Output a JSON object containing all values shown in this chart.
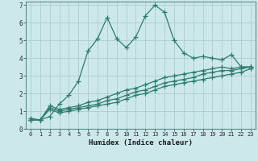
{
  "xlabel": "Humidex (Indice chaleur)",
  "background_color": "#cde8eb",
  "grid_color": "#b0d0d4",
  "line_color": "#2e7c6e",
  "xlim": [
    -0.5,
    23.5
  ],
  "ylim": [
    0,
    7.2
  ],
  "xticks": [
    0,
    1,
    2,
    3,
    4,
    5,
    6,
    7,
    8,
    9,
    10,
    11,
    12,
    13,
    14,
    15,
    16,
    17,
    18,
    19,
    20,
    21,
    22,
    23
  ],
  "yticks": [
    0,
    1,
    2,
    3,
    4,
    5,
    6,
    7
  ],
  "series1_x": [
    0,
    1,
    2,
    3,
    4,
    5,
    6,
    7,
    8,
    9,
    10,
    11,
    12,
    13,
    14,
    15,
    16,
    17,
    18,
    19,
    20,
    21,
    22,
    23
  ],
  "series1_y": [
    0.6,
    0.5,
    0.7,
    1.4,
    1.9,
    2.7,
    4.4,
    5.1,
    6.3,
    5.1,
    4.6,
    5.2,
    6.4,
    7.0,
    6.6,
    5.0,
    4.3,
    4.0,
    4.1,
    4.0,
    3.9,
    4.2,
    3.5,
    3.5
  ],
  "series2_x": [
    0,
    1,
    2,
    3,
    4,
    5,
    6,
    7,
    8,
    9,
    10,
    11,
    12,
    13,
    14,
    15,
    16,
    17,
    18,
    19,
    20,
    21,
    22,
    23
  ],
  "series2_y": [
    0.5,
    0.5,
    1.3,
    1.1,
    1.2,
    1.3,
    1.5,
    1.6,
    1.8,
    2.0,
    2.2,
    2.3,
    2.5,
    2.7,
    2.9,
    3.0,
    3.1,
    3.2,
    3.3,
    3.4,
    3.5,
    3.4,
    3.5,
    3.5
  ],
  "series3_x": [
    0,
    1,
    2,
    3,
    4,
    5,
    6,
    7,
    8,
    9,
    10,
    11,
    12,
    13,
    14,
    15,
    16,
    17,
    18,
    19,
    20,
    21,
    22,
    23
  ],
  "series3_y": [
    0.5,
    0.5,
    1.2,
    1.0,
    1.1,
    1.2,
    1.3,
    1.4,
    1.6,
    1.7,
    1.9,
    2.1,
    2.2,
    2.4,
    2.6,
    2.7,
    2.8,
    2.9,
    3.1,
    3.2,
    3.3,
    3.3,
    3.4,
    3.5
  ],
  "series4_x": [
    0,
    1,
    2,
    3,
    4,
    5,
    6,
    7,
    8,
    9,
    10,
    11,
    12,
    13,
    14,
    15,
    16,
    17,
    18,
    19,
    20,
    21,
    22,
    23
  ],
  "series4_y": [
    0.5,
    0.5,
    1.1,
    0.9,
    1.0,
    1.1,
    1.2,
    1.3,
    1.4,
    1.5,
    1.7,
    1.9,
    2.0,
    2.2,
    2.4,
    2.5,
    2.6,
    2.7,
    2.8,
    2.9,
    3.0,
    3.1,
    3.2,
    3.4
  ]
}
